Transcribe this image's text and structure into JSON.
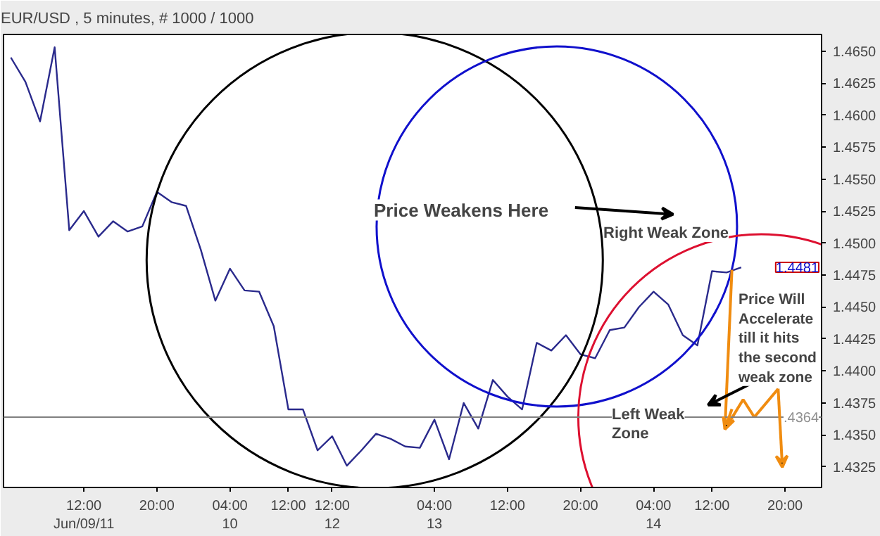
{
  "chart_data": {
    "type": "line",
    "title": "EUR/USD , 5 minutes, # 1000 / 1000",
    "categories": [
      null,
      null,
      null,
      null,
      null,
      "12:00\nJun/09/11",
      null,
      null,
      null,
      null,
      "20:00",
      null,
      null,
      null,
      null,
      "04:00\n10",
      null,
      null,
      null,
      "12:00",
      null,
      null,
      "12:00\n12",
      null,
      null,
      null,
      null,
      null,
      null,
      "04:00\n13",
      null,
      null,
      null,
      null,
      "12:00",
      null,
      null,
      null,
      null,
      "20:00",
      null,
      null,
      null,
      null,
      "04:00\n14",
      null,
      null,
      null,
      "12:00",
      null,
      null,
      null,
      null,
      "20:00",
      null,
      null
    ],
    "series": [
      {
        "color": "#2a2a8c",
        "values": [
          1.4645,
          1.4626,
          1.4595,
          1.4653,
          1.451,
          1.4525,
          1.4505,
          1.4517,
          1.4509,
          1.4513,
          1.454,
          1.4532,
          1.4529,
          1.4495,
          1.4455,
          1.448,
          1.4463,
          1.4462,
          1.4435,
          1.437,
          1.437,
          1.4338,
          1.4349,
          1.4326,
          1.4338,
          1.4351,
          1.4347,
          1.4341,
          1.434,
          1.4362,
          1.4331,
          1.4375,
          1.4355,
          1.4393,
          1.438,
          1.437,
          1.4422,
          1.4416,
          1.4428,
          1.4413,
          1.441,
          1.4432,
          1.4434,
          1.445,
          1.4462,
          1.4452,
          1.4428,
          1.442,
          1.4478,
          1.4477,
          1.4481,
          null,
          null,
          null,
          null,
          null
        ]
      }
    ],
    "ylim": [
      1.4309,
      1.4663
    ],
    "yticks": [
      {
        "value": 1.4325,
        "label": "1.4325"
      },
      {
        "value": 1.435,
        "label": "1.4350"
      },
      {
        "value": 1.4375,
        "label": "1.4375"
      },
      {
        "value": 1.44,
        "label": "1.4400"
      },
      {
        "value": 1.4425,
        "label": "1.4425"
      },
      {
        "value": 1.445,
        "label": "1.4450"
      },
      {
        "value": 1.4475,
        "label": "1.4475"
      },
      {
        "value": 1.45,
        "label": "1.4500"
      },
      {
        "value": 1.4525,
        "label": "1.4525"
      },
      {
        "value": 1.455,
        "label": "1.4550"
      },
      {
        "value": 1.4575,
        "label": "1.4575"
      },
      {
        "value": 1.46,
        "label": "1.4600"
      },
      {
        "value": 1.4625,
        "label": "1.4625"
      },
      {
        "value": 1.465,
        "label": "1.4650"
      }
    ],
    "ref_lines": [
      {
        "axis": "y",
        "value": 1.4364,
        "color": "#808080"
      }
    ],
    "annotations": [
      "1.4481",
      {
        "text": ".4364",
        "y": 1.4364
      },
      "Price Weakens Here",
      "Right Weak Zone",
      "Left Weak\nZone",
      "Price Will\nAccelerate\ntill it hits\nthe second\nweak zone"
    ],
    "grid": false,
    "marker": "none",
    "line_style": "solid"
  }
}
